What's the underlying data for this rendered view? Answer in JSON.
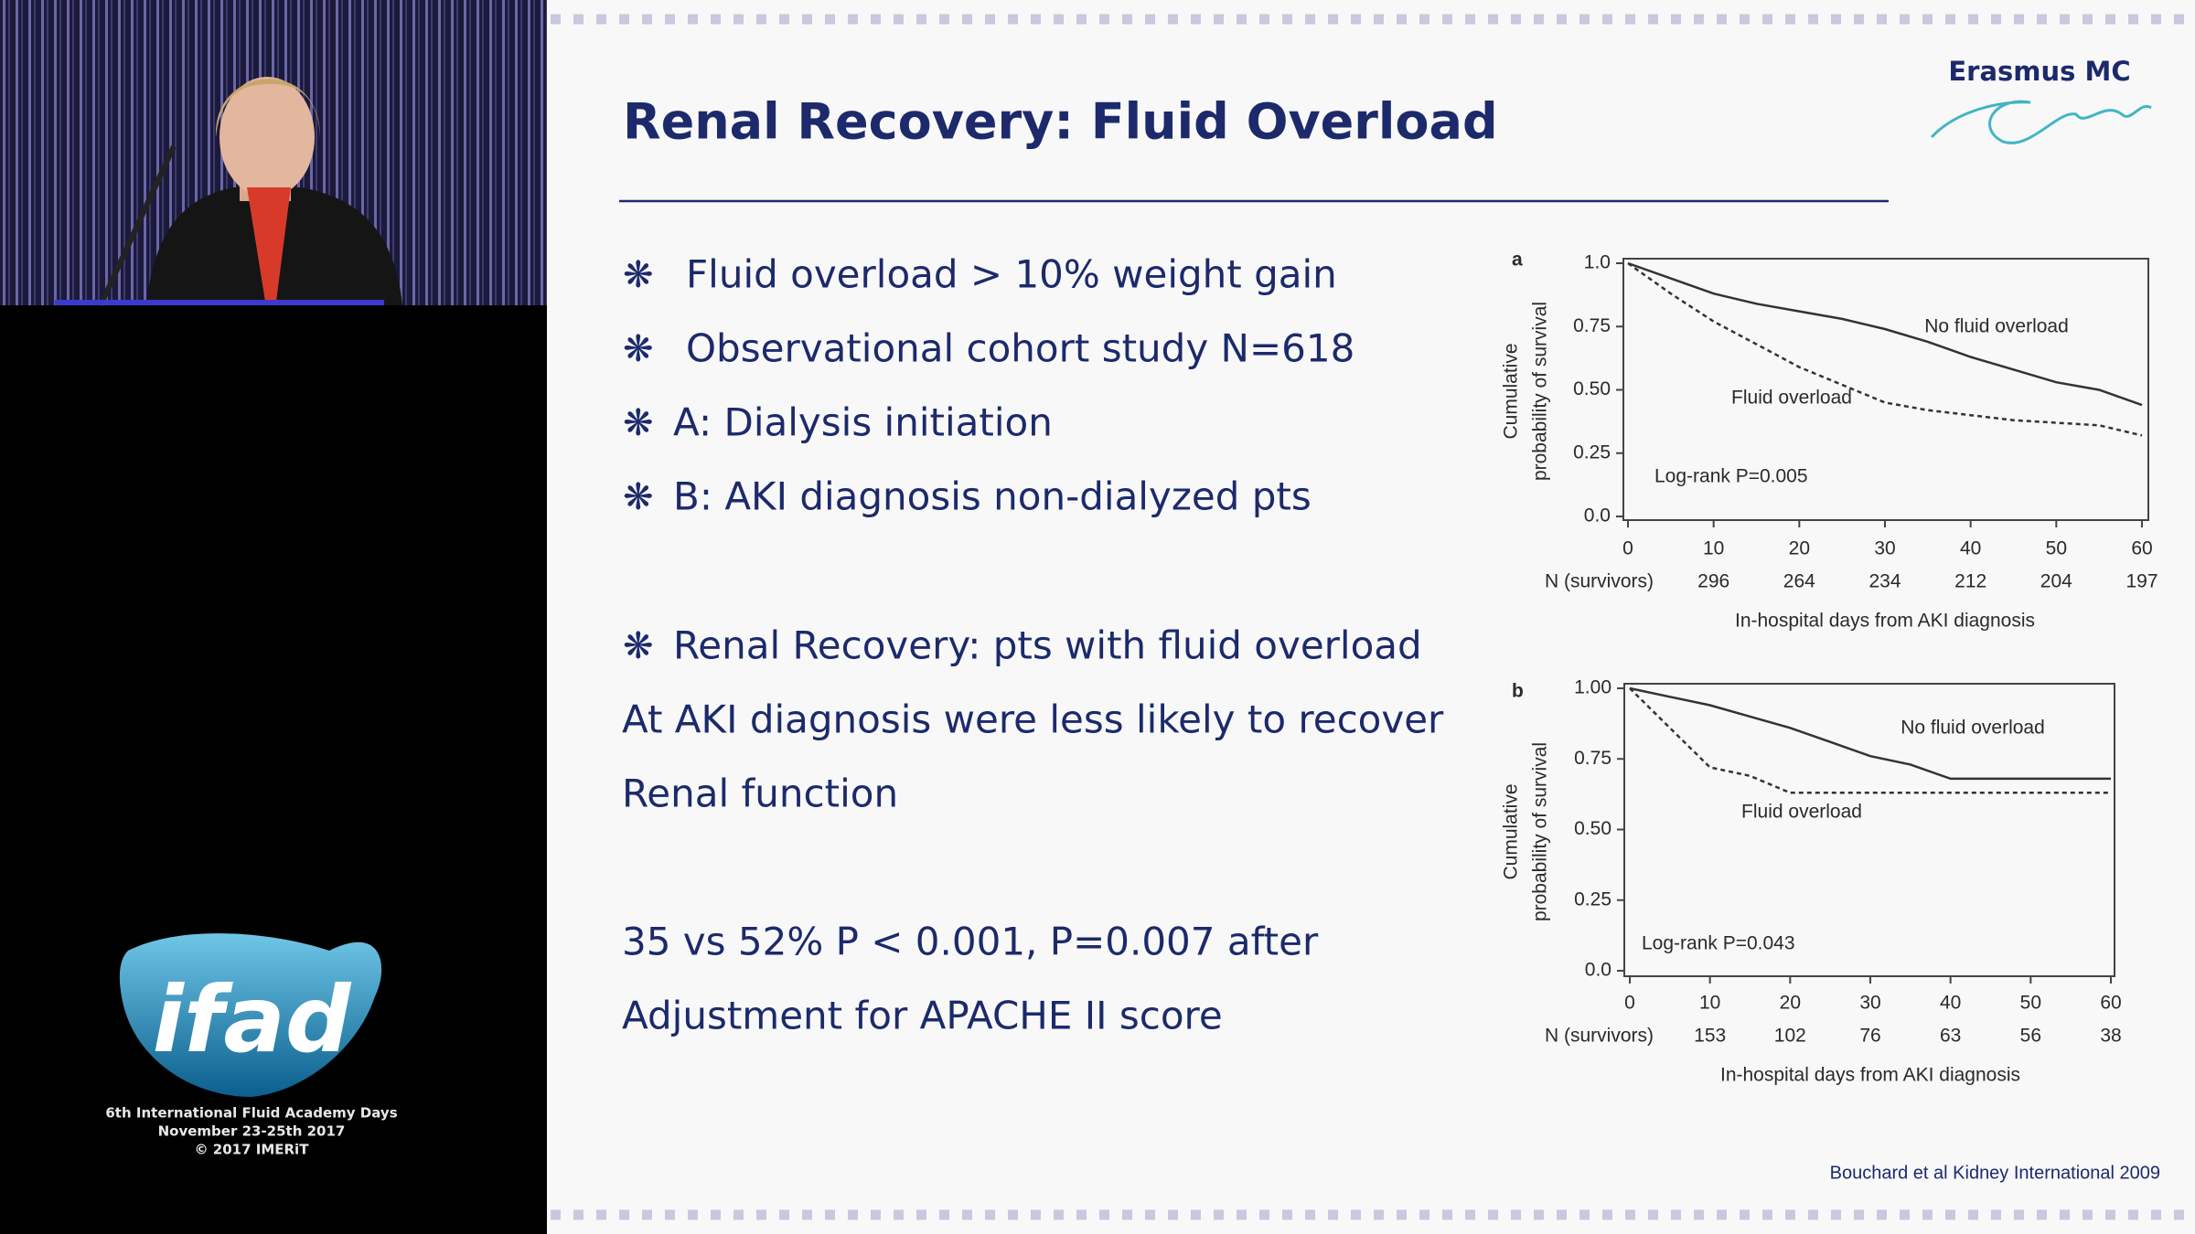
{
  "video": {
    "logo": "ifad",
    "event": [
      "6th International Fluid Academy Days",
      "November 23-25th 2017",
      "© 2017 IMERiT"
    ]
  },
  "slide": {
    "title": "Renal Recovery: Fluid Overload",
    "logo": "Erasmus MC",
    "bullets": [
      "Fluid overload > 10% weight gain",
      "Observational cohort study N=618",
      "A: Dialysis initiation",
      "B: AKI diagnosis non-dialyzed pts",
      "Renal Recovery: pts with fluid overload"
    ],
    "notes": [
      "At AKI diagnosis were less likely to recover",
      "Renal function",
      "35 vs 52% P < 0.001, P=0.007 after",
      "Adjustment for APACHE II score"
    ],
    "citation": "Bouchard et al Kidney International 2009",
    "charts": [
      {
        "type": "line",
        "panel": "a",
        "ylabel": [
          "Cumulative",
          "probability of survival"
        ],
        "xlabel": "In-hospital days from AKI diagnosis",
        "x": [
          0,
          5,
          10,
          15,
          20,
          25,
          30,
          35,
          40,
          45,
          50,
          55,
          60
        ],
        "series": [
          {
            "name": "No fluid overload",
            "color": "#333333",
            "dash": false,
            "values": [
              1.0,
              0.94,
              0.88,
              0.84,
              0.81,
              0.78,
              0.74,
              0.69,
              0.63,
              0.58,
              0.53,
              0.5,
              0.44
            ]
          },
          {
            "name": "Fluid overload",
            "color": "#333333",
            "dash": true,
            "values": [
              1.0,
              0.88,
              0.77,
              0.68,
              0.59,
              0.52,
              0.45,
              0.42,
              0.4,
              0.38,
              0.37,
              0.36,
              0.32
            ]
          }
        ],
        "annotation": "Log-rank P=0.005",
        "xlim": [
          0,
          60
        ],
        "xticks": [
          0,
          10,
          20,
          30,
          40,
          50,
          60
        ],
        "ylim": [
          0,
          1
        ],
        "yticks": [
          {
            "value": 0,
            "label": "0.0"
          },
          0.25,
          {
            "value": 0.5,
            "label": "0.50"
          },
          0.75,
          {
            "value": 1,
            "label": "1.0"
          }
        ],
        "at_risk_label": "N (survivors)",
        "at_risk_x": [
          10,
          20,
          30,
          40,
          50,
          60
        ],
        "at_risk": [
          296,
          264,
          234,
          212,
          204,
          197
        ]
      },
      {
        "type": "line",
        "panel": "b",
        "ylabel": [
          "Cumulative",
          "probability of survival"
        ],
        "xlabel": "In-hospital days from AKI diagnosis",
        "x": [
          0,
          5,
          10,
          15,
          20,
          25,
          30,
          35,
          40,
          45,
          50,
          55,
          60
        ],
        "series": [
          {
            "name": "No fluid overload",
            "color": "#333333",
            "dash": false,
            "values": [
              1.0,
              0.97,
              0.94,
              0.9,
              0.86,
              0.81,
              0.76,
              0.73,
              0.68,
              0.68,
              0.68,
              0.68,
              0.68
            ]
          },
          {
            "name": "Fluid overload",
            "color": "#333333",
            "dash": true,
            "values": [
              1.0,
              0.86,
              0.72,
              0.69,
              0.63,
              0.63,
              0.63,
              0.63,
              0.63,
              0.63,
              0.63,
              0.63,
              0.63
            ]
          }
        ],
        "annotation": "Log-rank P=0.043",
        "xlim": [
          0,
          60
        ],
        "xticks": [
          0,
          10,
          20,
          30,
          40,
          50,
          60
        ],
        "ylim": [
          0,
          1
        ],
        "yticks": [
          {
            "value": 0,
            "label": "0.0"
          },
          0.25,
          {
            "value": 0.5,
            "label": "0.50"
          },
          0.75,
          {
            "value": 1,
            "label": "1.00"
          }
        ],
        "at_risk_label": "N (survivors)",
        "at_risk_x": [
          10,
          20,
          30,
          40,
          50,
          60
        ],
        "at_risk": [
          153,
          102,
          76,
          63,
          56,
          38
        ]
      }
    ]
  }
}
